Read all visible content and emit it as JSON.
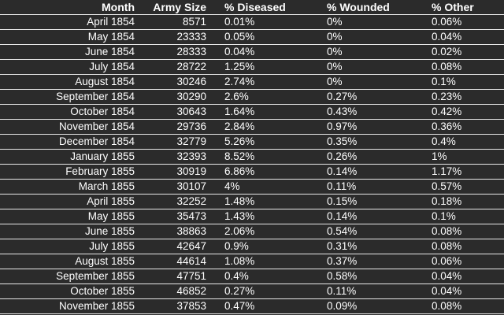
{
  "table": {
    "header": [
      "Month",
      "Army Size",
      "% Diseased",
      "% Wounded",
      "% Other"
    ],
    "rows": [
      [
        "April 1854",
        "8571",
        "0.01%",
        "0%",
        "0.06%"
      ],
      [
        "May 1854",
        "23333",
        "0.05%",
        "0%",
        "0.04%"
      ],
      [
        "June 1854",
        "28333",
        "0.04%",
        "0%",
        "0.02%"
      ],
      [
        "July 1854",
        "28722",
        "1.25%",
        "0%",
        "0.08%"
      ],
      [
        "August 1854",
        "30246",
        "2.74%",
        "0%",
        "0.1%"
      ],
      [
        "September 1854",
        "30290",
        "2.6%",
        "0.27%",
        "0.23%"
      ],
      [
        "October 1854",
        "30643",
        "1.64%",
        "0.43%",
        "0.42%"
      ],
      [
        "November 1854",
        "29736",
        "2.84%",
        "0.97%",
        "0.36%"
      ],
      [
        "December 1854",
        "32779",
        "5.26%",
        "0.35%",
        "0.4%"
      ],
      [
        "January 1855",
        "32393",
        "8.52%",
        "0.26%",
        "1%"
      ],
      [
        "February 1855",
        "30919",
        "6.86%",
        "0.14%",
        "1.17%"
      ],
      [
        "March 1855",
        "30107",
        "4%",
        "0.11%",
        "0.57%"
      ],
      [
        "April 1855",
        "32252",
        "1.48%",
        "0.15%",
        "0.18%"
      ],
      [
        "May 1855",
        "35473",
        "1.43%",
        "0.14%",
        "0.1%"
      ],
      [
        "June 1855",
        "38863",
        "2.06%",
        "0.54%",
        "0.08%"
      ],
      [
        "July 1855",
        "42647",
        "0.9%",
        "0.31%",
        "0.08%"
      ],
      [
        "August 1855",
        "44614",
        "1.08%",
        "0.37%",
        "0.06%"
      ],
      [
        "September 1855",
        "47751",
        "0.4%",
        "0.58%",
        "0.04%"
      ],
      [
        "October 1855",
        "46852",
        "0.27%",
        "0.11%",
        "0.04%"
      ],
      [
        "November 1855",
        "37853",
        "0.47%",
        "0.09%",
        "0.08%"
      ]
    ]
  }
}
